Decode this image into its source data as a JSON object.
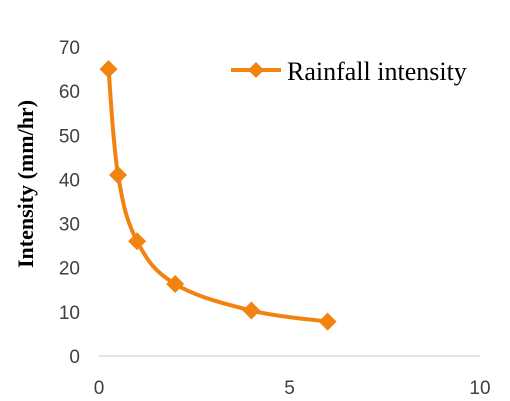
{
  "chart_data": {
    "type": "scatter",
    "title": "",
    "xlabel": "",
    "ylabel": "Intensity (mm/hr)",
    "xlim": [
      0,
      10
    ],
    "ylim": [
      0,
      70
    ],
    "x_ticks": [
      0,
      5,
      10
    ],
    "y_ticks": [
      0,
      10,
      20,
      30,
      40,
      50,
      60,
      70
    ],
    "grid": false,
    "legend_position": "top-right",
    "series": [
      {
        "name": "Rainfall intensity",
        "color": "#F28311",
        "marker": "diamond",
        "line": "smooth",
        "x": [
          0.25,
          0.5,
          1,
          2,
          4,
          6
        ],
        "y": [
          65,
          41,
          26,
          16.3,
          10.3,
          7.8
        ]
      }
    ]
  }
}
